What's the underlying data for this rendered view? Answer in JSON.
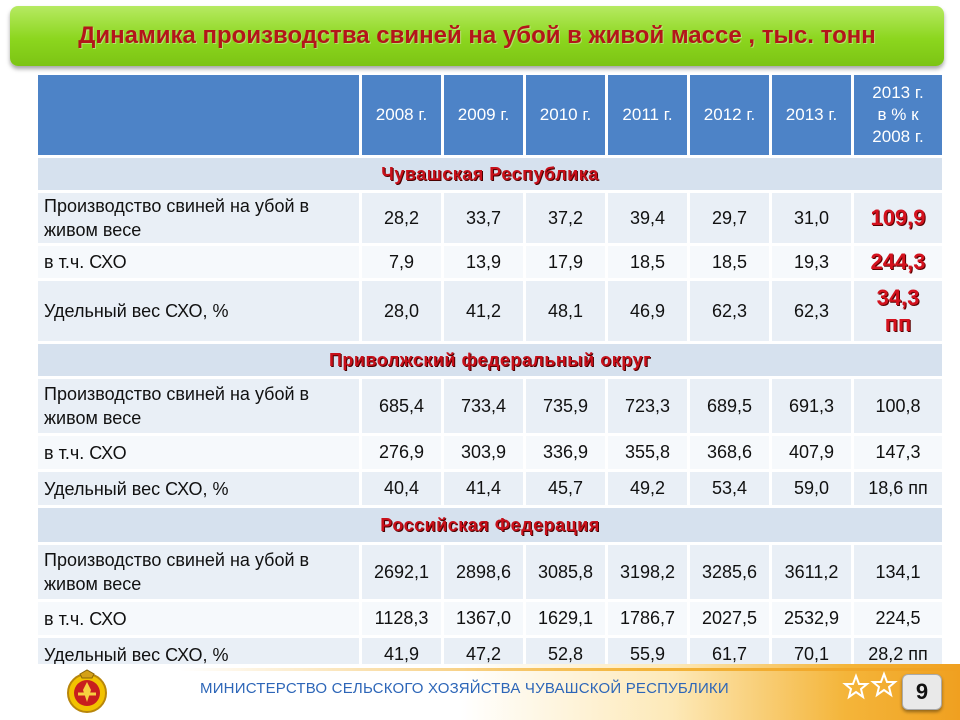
{
  "title": "Динамика производства свиней на убой в живой массе , тыс. тонн",
  "header": {
    "years": [
      "2008 г.",
      "2009 г.",
      "2010 г.",
      "2011 г.",
      "2012 г.",
      "2013 г."
    ],
    "last_col": [
      "2013 г.",
      "в % к",
      "2008 г."
    ]
  },
  "sections": [
    {
      "region": "Чувашская Республика",
      "rows": [
        {
          "label": [
            "Производство свиней на убой в",
            "живом весе"
          ],
          "values": [
            "28,2",
            "33,7",
            "37,2",
            "39,4",
            "29,7",
            "31,0"
          ],
          "pct": [
            "109,9"
          ],
          "highlight": true
        },
        {
          "label": [
            "в т.ч. СХО"
          ],
          "values": [
            "7,9",
            "13,9",
            "17,9",
            "18,5",
            "18,5",
            "19,3"
          ],
          "pct": [
            "244,3"
          ],
          "highlight": true
        },
        {
          "label": [
            "Удельный вес СХО, %"
          ],
          "values": [
            "28,0",
            "41,2",
            "48,1",
            "46,9",
            "62,3",
            "62,3"
          ],
          "pct": [
            "34,3",
            "пп"
          ],
          "highlight": true
        }
      ]
    },
    {
      "region": "Приволжский федеральный округ",
      "rows": [
        {
          "label": [
            "Производство свиней на убой в",
            "живом весе"
          ],
          "values": [
            "685,4",
            "733,4",
            "735,9",
            "723,3",
            "689,5",
            "691,3"
          ],
          "pct": [
            "100,8"
          ],
          "highlight": false
        },
        {
          "label": [
            "в т.ч. СХО"
          ],
          "values": [
            "276,9",
            "303,9",
            "336,9",
            "355,8",
            "368,6",
            "407,9"
          ],
          "pct": [
            "147,3"
          ],
          "highlight": false
        },
        {
          "label": [
            "Удельный вес СХО, %"
          ],
          "values": [
            "40,4",
            "41,4",
            "45,7",
            "49,2",
            "53,4",
            "59,0"
          ],
          "pct": [
            "18,6 пп"
          ],
          "highlight": false
        }
      ]
    },
    {
      "region": "Российская Федерация",
      "rows": [
        {
          "label": [
            "Производство свиней на убой в",
            "живом весе"
          ],
          "values": [
            "2692,1",
            "2898,6",
            "3085,8",
            "3198,2",
            "3285,6",
            "3611,2"
          ],
          "pct": [
            "134,1"
          ],
          "highlight": false
        },
        {
          "label": [
            "в т.ч. СХО"
          ],
          "values": [
            "1128,3",
            "1367,0",
            "1629,1",
            "1786,7",
            "2027,5",
            "2532,9"
          ],
          "pct": [
            "224,5"
          ],
          "highlight": false
        },
        {
          "label": [
            "Удельный вес СХО, %"
          ],
          "values": [
            "41,9",
            "47,2",
            "52,8",
            "55,9",
            "61,7",
            "70,1"
          ],
          "pct": [
            "28,2 пп"
          ],
          "highlight": false
        }
      ]
    }
  ],
  "footer": {
    "ministry": "МИНИСТЕРСТВО СЕЛЬСКОГО ХОЗЯЙСТВА ЧУВАШСКОЙ РЕСПУБЛИКИ",
    "page_number": "9"
  },
  "colors": {
    "header_blue": "#4d83c7",
    "region_red": "#c8101a",
    "title_green": "#8cd61e",
    "footer_blue": "#2d66b8"
  }
}
